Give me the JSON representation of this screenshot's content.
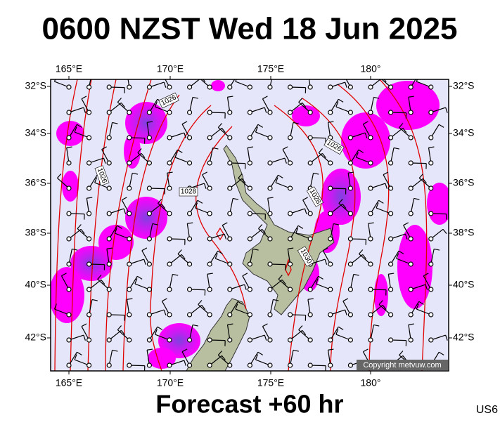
{
  "header": {
    "title": "0600 NZST Wed 18 Jun 2025"
  },
  "map": {
    "lon_ticks": [
      "165°E",
      "170°E",
      "175°E",
      "180°"
    ],
    "lat_ticks": [
      "32°S",
      "34°S",
      "36°S",
      "38°S",
      "40°S",
      "42°S"
    ],
    "contour_labels": [
      "1026",
      "1026",
      "1026",
      "1028",
      "1028",
      "1030"
    ],
    "copyright": "Copyright metvuw.com"
  },
  "footer": {
    "forecast": "Forecast +60 hr",
    "code": "US6"
  }
}
